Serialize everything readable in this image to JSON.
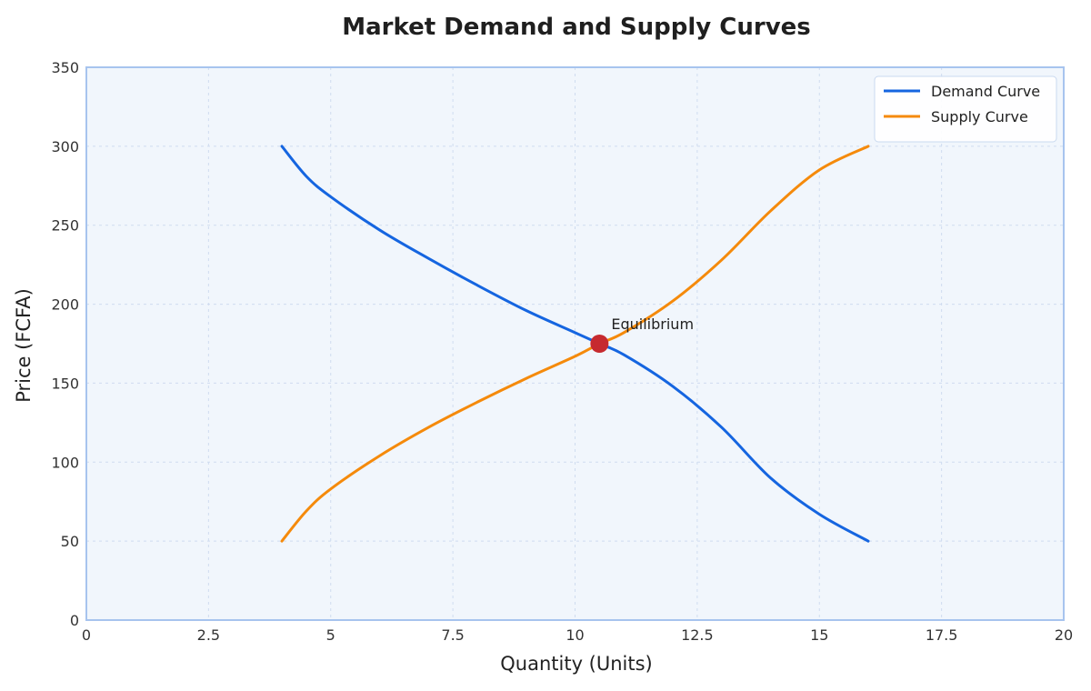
{
  "chart_data": {
    "type": "line",
    "title": "Market Demand and Supply Curves",
    "xlabel": "Quantity (Units)",
    "ylabel": "Price (FCFA)",
    "xlim": [
      0,
      20
    ],
    "ylim": [
      0,
      350
    ],
    "xticks": [
      0,
      2.5,
      5,
      7.5,
      10,
      12.5,
      15,
      17.5,
      20
    ],
    "yticks": [
      0,
      50,
      100,
      150,
      200,
      250,
      300,
      350
    ],
    "grid": true,
    "legend_position": "top-right",
    "series": [
      {
        "name": "Demand Curve",
        "color": "#1565e0",
        "x": [
          4,
          4.5,
          5,
          6,
          7,
          8,
          9,
          10,
          10.5,
          11,
          12,
          13,
          14,
          15,
          16
        ],
        "y": [
          300,
          281,
          268,
          247,
          229,
          212,
          196,
          182,
          175,
          168,
          148,
          122,
          90,
          67,
          50
        ]
      },
      {
        "name": "Supply Curve",
        "color": "#f58a0b",
        "x": [
          4,
          4.5,
          5,
          6,
          7,
          8,
          9,
          10,
          10.5,
          11,
          12,
          13,
          14,
          15,
          16
        ],
        "y": [
          50,
          69,
          83,
          104,
          122,
          138,
          153,
          167,
          175,
          182,
          202,
          228,
          259,
          285,
          300
        ]
      }
    ],
    "annotations": [
      {
        "label": "Equilibrium",
        "x": 10.5,
        "y": 175,
        "marker_color": "#c62a2f"
      }
    ]
  }
}
